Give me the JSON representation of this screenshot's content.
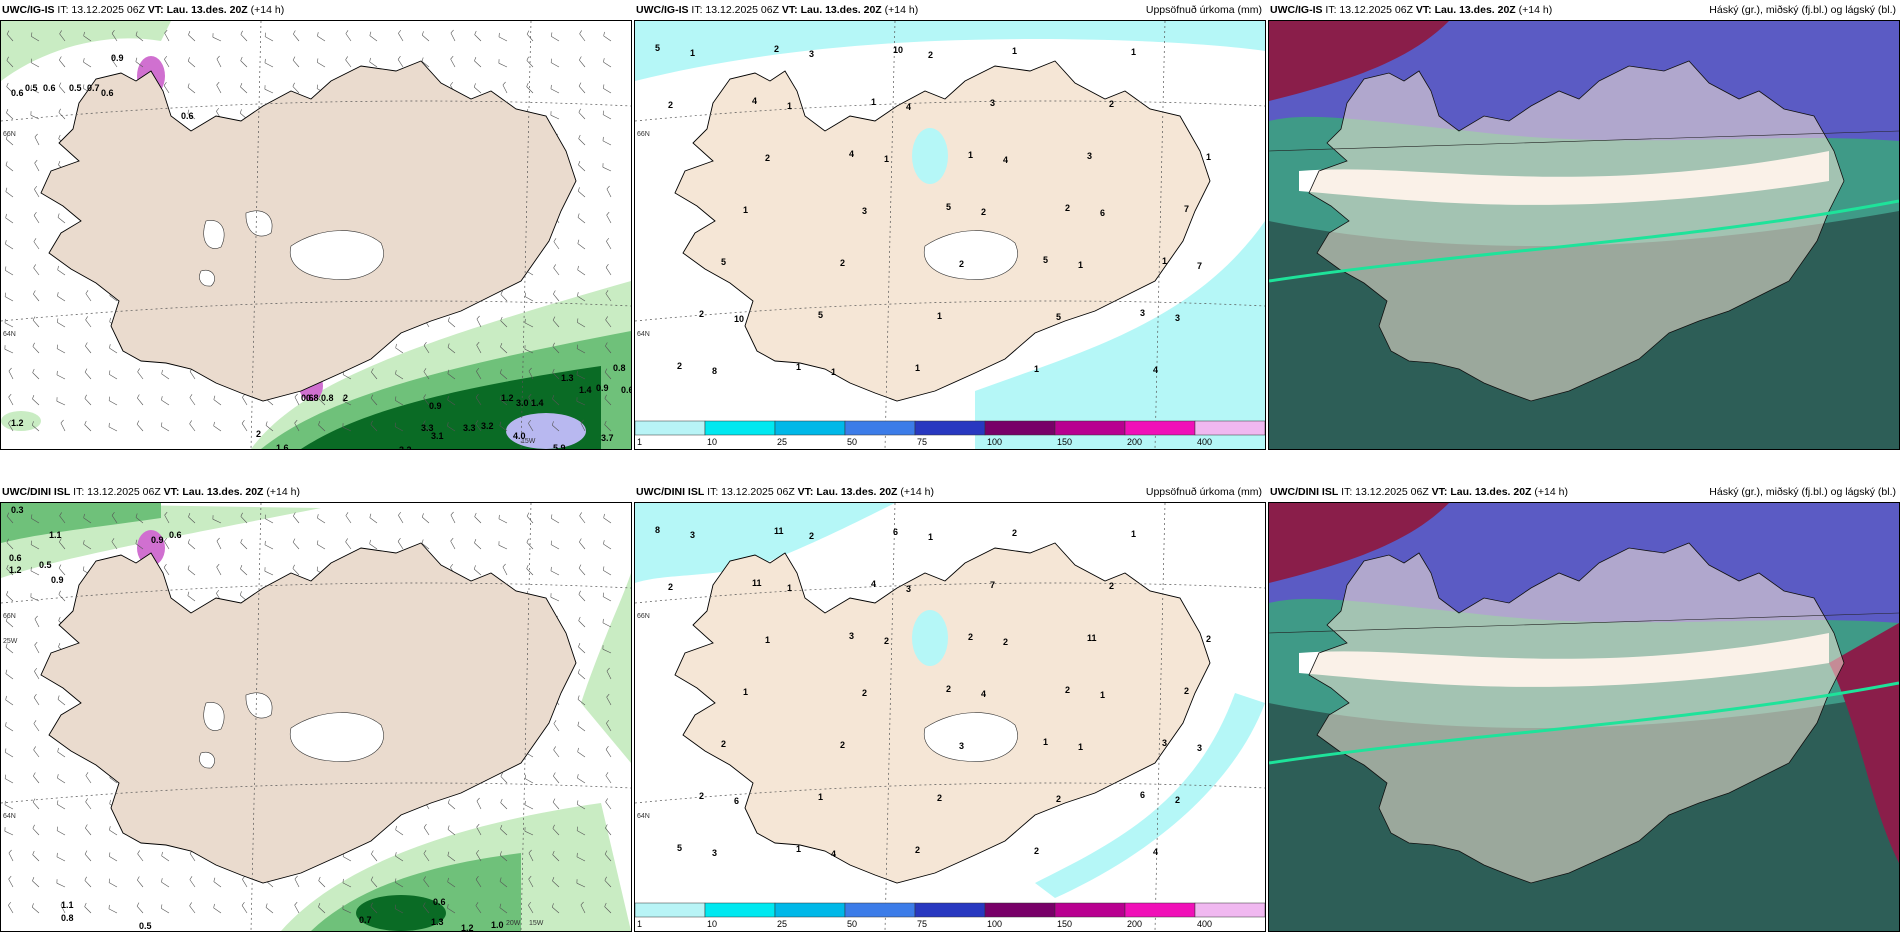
{
  "panels": [
    {
      "id": "p1",
      "title_model": "UWC/IG-IS",
      "title_it": "IT: 13.12.2025 06Z",
      "title_vt": "VT: Lau. 13.des. 20Z",
      "title_lead": "(+14 h)",
      "title_right": "",
      "kind": "wind",
      "grid_labels": [
        "66N",
        "64N",
        "15W"
      ],
      "values": [
        "0.6",
        "0.5",
        "0.6",
        "0.5",
        "0.7",
        "0.6",
        "0.6",
        "0.9",
        "0.6",
        "0.8",
        "2",
        "0.9",
        "1.2",
        "3.0",
        "1.4",
        "1.3",
        "1.4",
        "0.9",
        "0.8",
        "0.6",
        "0.8",
        "3.3",
        "3.1",
        "3.3",
        "3.2",
        "4.0",
        "3.2",
        "5.9",
        "3.7",
        "1.2",
        "1.6",
        "2"
      ]
    },
    {
      "id": "p2",
      "title_model": "UWC/IG-IS",
      "title_it": "IT: 13.12.2025 06Z",
      "title_vt": "VT: Lau. 13.des. 20Z",
      "title_lead": "(+14 h)",
      "title_right": "Uppsöfnuð úrkoma (mm)",
      "kind": "precip",
      "grid_labels": [
        "66N",
        "64N"
      ],
      "values": [
        "5",
        "4",
        "4",
        "5",
        "5",
        "3",
        "2",
        "2",
        "1",
        "1",
        "2",
        "1",
        "2",
        "1",
        "10",
        "3",
        "3",
        "7",
        "5",
        "5",
        "1",
        "1",
        "2",
        "1",
        "1",
        "2",
        "1",
        "1",
        "1",
        "2",
        "2",
        "3",
        "2",
        "5",
        "4",
        "1",
        "1",
        "1",
        "2",
        "1",
        "3",
        "8",
        "3",
        "4",
        "4",
        "6",
        "7",
        "10",
        "1",
        "2"
      ]
    },
    {
      "id": "p3",
      "title_model": "UWC/IG-IS",
      "title_it": "IT: 13.12.2025 06Z",
      "title_vt": "VT: Lau. 13.des. 20Z",
      "title_lead": "(+14 h)",
      "title_right": "Háský (gr.), miðský (fj.bl.) og lágský (bl.)",
      "kind": "cloud"
    },
    {
      "id": "p4",
      "title_model": "UWC/DINI ISL",
      "title_it": "IT: 13.12.2025 06Z",
      "title_vt": "VT: Lau. 13.des. 20Z",
      "title_lead": "(+14 h)",
      "title_right": "",
      "kind": "wind",
      "grid_labels": [
        "66N",
        "64N",
        "20W",
        "15W",
        "25W"
      ],
      "values": [
        "0.3",
        "0.6",
        "1.1",
        "0.6",
        "0.5",
        "1.2",
        "0.9",
        "1.1",
        "0.8",
        "0.6",
        "0.5",
        "0.7",
        "1.3",
        "1.2",
        "1.0",
        "0.9"
      ]
    },
    {
      "id": "p5",
      "title_model": "UWC/DINI ISL",
      "title_it": "IT: 13.12.2025 06Z",
      "title_vt": "VT: Lau. 13.des. 20Z",
      "title_lead": "(+14 h)",
      "title_right": "Uppsöfnuð úrkoma (mm)",
      "kind": "precip",
      "grid_labels": [
        "66N",
        "64N"
      ],
      "values": [
        "8",
        "11",
        "3",
        "2",
        "1",
        "6",
        "5",
        "11",
        "4",
        "2",
        "2",
        "3",
        "2",
        "1",
        "6",
        "7",
        "11",
        "2",
        "2",
        "1",
        "2",
        "2",
        "2",
        "2",
        "1",
        "2",
        "2",
        "2",
        "1",
        "2",
        "1",
        "2",
        "3",
        "2",
        "4",
        "3",
        "1",
        "2",
        "4",
        "1",
        "2",
        "3",
        "2",
        "3",
        "2",
        "1",
        "3",
        "6",
        "4",
        "1"
      ]
    },
    {
      "id": "p6",
      "title_model": "UWC/DINI ISL",
      "title_it": "IT: 13.12.2025 06Z",
      "title_vt": "VT: Lau. 13.des. 20Z",
      "title_lead": "(+14 h)",
      "title_right": "Háský (gr.), miðský (fj.bl.) og lágský (bl.)",
      "kind": "cloud"
    }
  ],
  "colorbar": {
    "labels": [
      "1",
      "10",
      "25",
      "50",
      "75",
      "100",
      "150",
      "200",
      "400"
    ],
    "colors": [
      "#b8f4f6",
      "#00e8f0",
      "#00b8e8",
      "#3c7ce8",
      "#2838c0",
      "#780068",
      "#b80090",
      "#f010b8",
      "#f0b8f0"
    ]
  },
  "colors": {
    "land": "#f5e6d6",
    "land_wind": "#eadbce",
    "sea_precip": "#b5f7f7",
    "green_light": "#c9ecc3",
    "green_mid": "#6fc17a",
    "green_dark": "#0a6b25",
    "cloud_teal": "#3f9a87",
    "cloud_dark": "#2d5e57",
    "cloud_blue": "#5b5bc4",
    "cloud_maroon": "#8a1e4a"
  }
}
